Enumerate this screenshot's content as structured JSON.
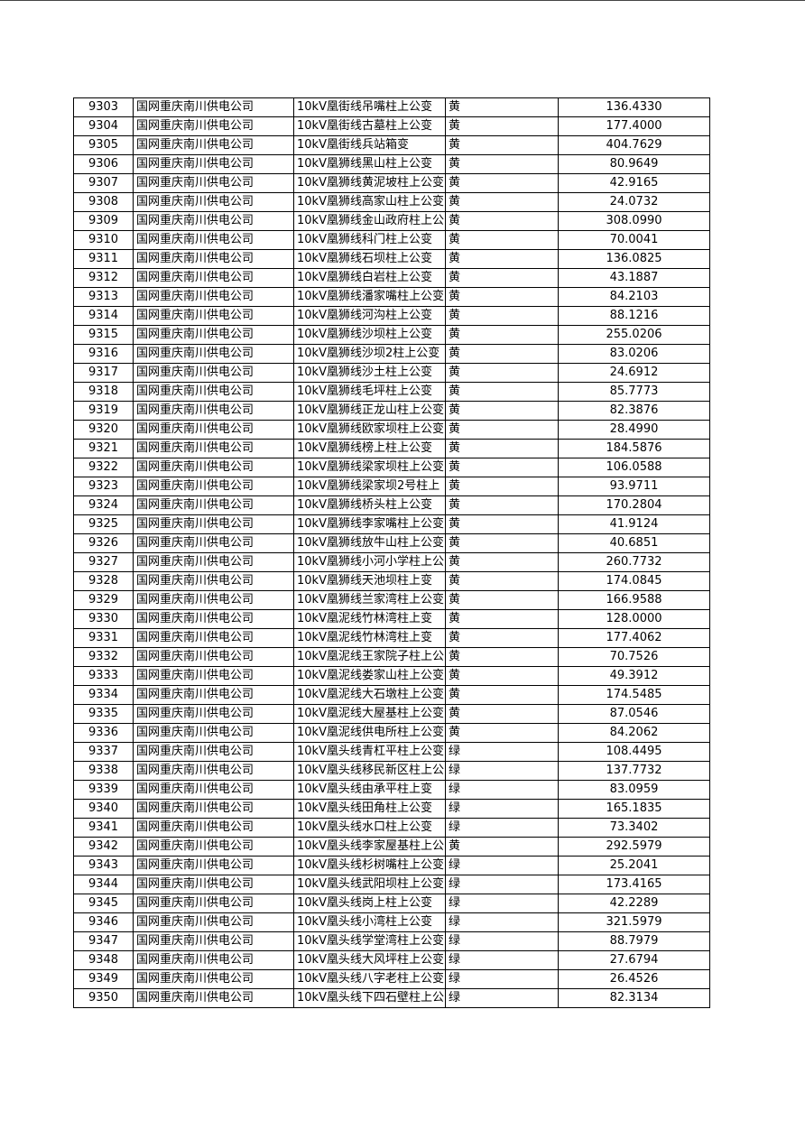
{
  "table": {
    "rows": [
      [
        "9303",
        "国网重庆南川供电公司",
        "10kV凰街线吊嘴柱上公变",
        "黄",
        "136.4330"
      ],
      [
        "9304",
        "国网重庆南川供电公司",
        "10kV凰街线古墓柱上公变",
        "黄",
        "177.4000"
      ],
      [
        "9305",
        "国网重庆南川供电公司",
        "10kV凰街线兵站箱变",
        "黄",
        "404.7629"
      ],
      [
        "9306",
        "国网重庆南川供电公司",
        "10kV凰狮线黑山柱上公变",
        "黄",
        "80.9649"
      ],
      [
        "9307",
        "国网重庆南川供电公司",
        "10kV凰狮线黄泥坡柱上公变",
        "黄",
        "42.9165"
      ],
      [
        "9308",
        "国网重庆南川供电公司",
        "10kV凰狮线高家山柱上公变",
        "黄",
        "24.0732"
      ],
      [
        "9309",
        "国网重庆南川供电公司",
        "10kV凰狮线金山政府柱上公",
        "黄",
        "308.0990"
      ],
      [
        "9310",
        "国网重庆南川供电公司",
        "10kV凰狮线科门柱上公变",
        "黄",
        "70.0041"
      ],
      [
        "9311",
        "国网重庆南川供电公司",
        "10kV凰狮线石坝柱上公变",
        "黄",
        "136.0825"
      ],
      [
        "9312",
        "国网重庆南川供电公司",
        "10kV凰狮线白岩柱上公变",
        "黄",
        "43.1887"
      ],
      [
        "9313",
        "国网重庆南川供电公司",
        "10kV凰狮线潘家嘴柱上公变",
        "黄",
        "84.2103"
      ],
      [
        "9314",
        "国网重庆南川供电公司",
        "10kV凰狮线河沟柱上公变",
        "黄",
        "88.1216"
      ],
      [
        "9315",
        "国网重庆南川供电公司",
        "10kV凰狮线沙坝柱上公变",
        "黄",
        "255.0206"
      ],
      [
        "9316",
        "国网重庆南川供电公司",
        "10kV凰狮线沙坝2柱上公变",
        "黄",
        "83.0206"
      ],
      [
        "9317",
        "国网重庆南川供电公司",
        "10kV凰狮线沙土柱上公变",
        "黄",
        "24.6912"
      ],
      [
        "9318",
        "国网重庆南川供电公司",
        "10kV凰狮线毛坪柱上公变",
        "黄",
        "85.7773"
      ],
      [
        "9319",
        "国网重庆南川供电公司",
        "10kV凰狮线正龙山柱上公变",
        "黄",
        "82.3876"
      ],
      [
        "9320",
        "国网重庆南川供电公司",
        "10kV凰狮线欧家坝柱上公变",
        "黄",
        "28.4990"
      ],
      [
        "9321",
        "国网重庆南川供电公司",
        "10kV凰狮线榜上柱上公变",
        "黄",
        "184.5876"
      ],
      [
        "9322",
        "国网重庆南川供电公司",
        "10kV凰狮线梁家坝柱上公变",
        "黄",
        "106.0588"
      ],
      [
        "9323",
        "国网重庆南川供电公司",
        "10kV凰狮线梁家坝2号柱上",
        "黄",
        "93.9711"
      ],
      [
        "9324",
        "国网重庆南川供电公司",
        "10kV凰狮线桥头柱上公变",
        "黄",
        "170.2804"
      ],
      [
        "9325",
        "国网重庆南川供电公司",
        "10kV凰狮线李家嘴柱上公变",
        "黄",
        "41.9124"
      ],
      [
        "9326",
        "国网重庆南川供电公司",
        "10kV凰狮线放牛山柱上公变",
        "黄",
        "40.6851"
      ],
      [
        "9327",
        "国网重庆南川供电公司",
        "10kV凰狮线小河小学柱上公",
        "黄",
        "260.7732"
      ],
      [
        "9328",
        "国网重庆南川供电公司",
        "10kV凰狮线天池坝柱上变",
        "黄",
        "174.0845"
      ],
      [
        "9329",
        "国网重庆南川供电公司",
        "10kV凰狮线兰家湾柱上公变",
        "黄",
        "166.9588"
      ],
      [
        "9330",
        "国网重庆南川供电公司",
        "10kV凰泥线竹林湾柱上变",
        "黄",
        "128.0000"
      ],
      [
        "9331",
        "国网重庆南川供电公司",
        "10kV凰泥线竹林湾柱上变",
        "黄",
        "177.4062"
      ],
      [
        "9332",
        "国网重庆南川供电公司",
        "10kV凰泥线王家院子柱上公",
        "黄",
        "70.7526"
      ],
      [
        "9333",
        "国网重庆南川供电公司",
        "10kV凰泥线娄家山柱上公变",
        "黄",
        "49.3912"
      ],
      [
        "9334",
        "国网重庆南川供电公司",
        "10kV凰泥线大石墩柱上公变",
        "黄",
        "174.5485"
      ],
      [
        "9335",
        "国网重庆南川供电公司",
        "10kV凰泥线大屋基柱上公变",
        "黄",
        "87.0546"
      ],
      [
        "9336",
        "国网重庆南川供电公司",
        "10kV凰泥线供电所柱上公变",
        "黄",
        "84.2062"
      ],
      [
        "9337",
        "国网重庆南川供电公司",
        "10kV凰头线青杠平柱上公变",
        "绿",
        "108.4495"
      ],
      [
        "9338",
        "国网重庆南川供电公司",
        "10kV凰头线移民新区柱上公",
        "绿",
        "137.7732"
      ],
      [
        "9339",
        "国网重庆南川供电公司",
        "10kV凰头线由承平柱上变",
        "绿",
        "83.0959"
      ],
      [
        "9340",
        "国网重庆南川供电公司",
        "10kV凰头线田角柱上公变",
        "绿",
        "165.1835"
      ],
      [
        "9341",
        "国网重庆南川供电公司",
        "10kV凰头线水口柱上公变",
        "绿",
        "73.3402"
      ],
      [
        "9342",
        "国网重庆南川供电公司",
        "10kV凰头线李家屋基柱上公",
        "黄",
        "292.5979"
      ],
      [
        "9343",
        "国网重庆南川供电公司",
        "10kV凰头线杉树嘴柱上公变",
        "绿",
        "25.2041"
      ],
      [
        "9344",
        "国网重庆南川供电公司",
        "10kV凰头线武阳坝柱上公变",
        "绿",
        "173.4165"
      ],
      [
        "9345",
        "国网重庆南川供电公司",
        "10kV凰头线岗上柱上公变",
        "绿",
        "42.2289"
      ],
      [
        "9346",
        "国网重庆南川供电公司",
        "10kV凰头线小湾柱上公变",
        "绿",
        "321.5979"
      ],
      [
        "9347",
        "国网重庆南川供电公司",
        "10kV凰头线学堂湾柱上公变",
        "绿",
        "88.7979"
      ],
      [
        "9348",
        "国网重庆南川供电公司",
        "10kV凰头线大风坪柱上公变",
        "绿",
        "27.6794"
      ],
      [
        "9349",
        "国网重庆南川供电公司",
        "10kV凰头线八字老柱上公变",
        "绿",
        "26.4526"
      ],
      [
        "9350",
        "国网重庆南川供电公司",
        "10kV凰头线下四石壁柱上公",
        "绿",
        "82.3134"
      ]
    ]
  }
}
